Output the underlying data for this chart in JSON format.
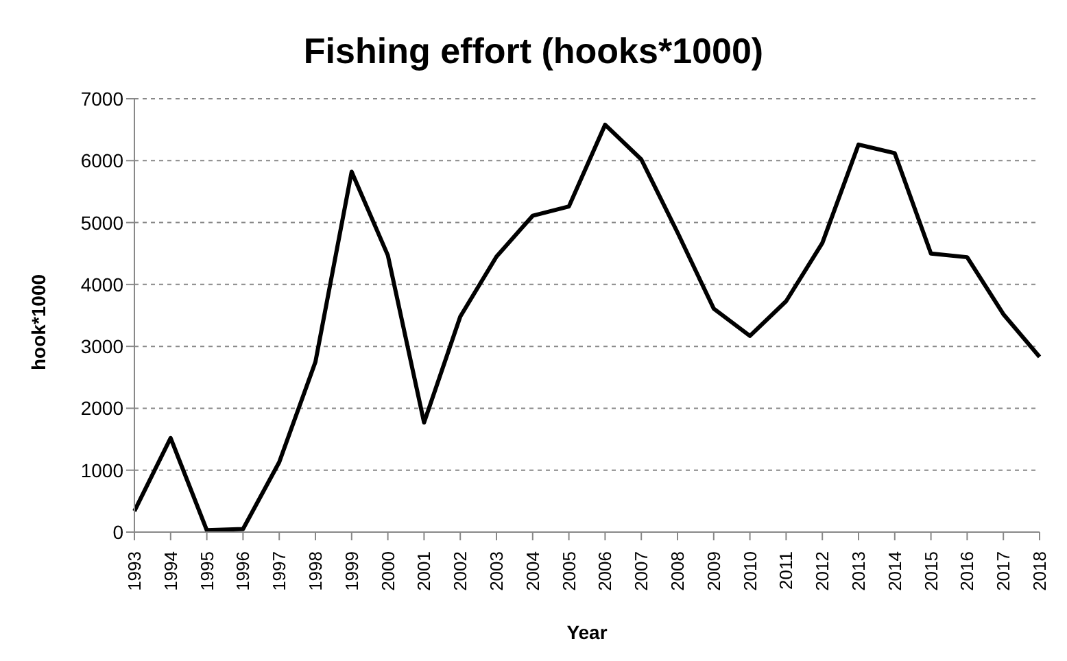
{
  "chart_data": {
    "type": "line",
    "title": "Fishing effort (hooks*1000)",
    "xlabel": "Year",
    "ylabel": "hook*1000",
    "categories": [
      "1993",
      "1994",
      "1995",
      "1996",
      "1997",
      "1998",
      "1999",
      "2000",
      "2001",
      "2002",
      "2003",
      "2004",
      "2005",
      "2006",
      "2007",
      "2008",
      "2009",
      "2010",
      "2011",
      "2012",
      "2013",
      "2014",
      "2015",
      "2016",
      "2017",
      "2018"
    ],
    "series": [
      {
        "color": "#000000",
        "values": [
          340,
          1520,
          30,
          50,
          1130,
          2750,
          5820,
          4470,
          1770,
          3480,
          4450,
          5110,
          5260,
          6580,
          6020,
          4840,
          3610,
          3170,
          3730,
          4670,
          6260,
          6120,
          4500,
          4440,
          3520,
          2830
        ]
      }
    ],
    "ylim": [
      0,
      7000
    ],
    "yticks": [
      0,
      1000,
      2000,
      3000,
      4000,
      5000,
      6000,
      7000
    ],
    "grid": "y",
    "legend": false,
    "marker": "none",
    "line_style": "solid"
  }
}
